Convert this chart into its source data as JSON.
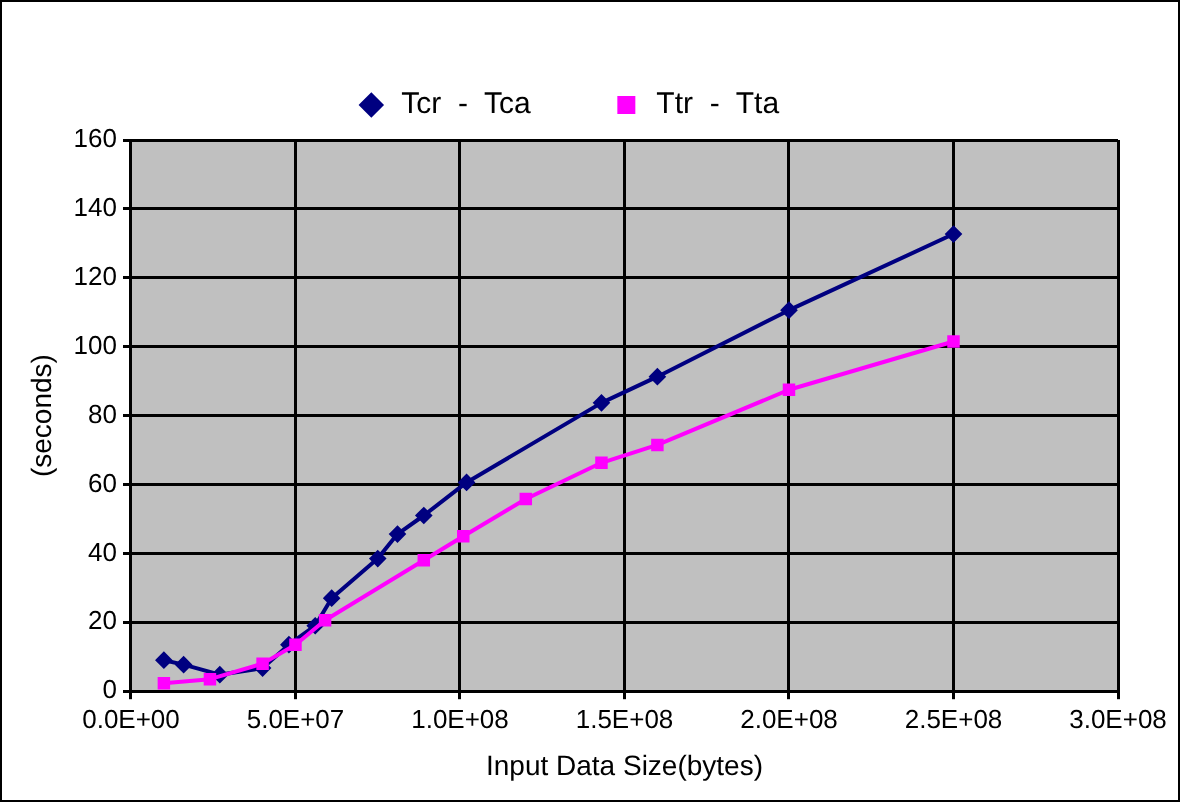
{
  "chart_data": {
    "type": "line",
    "xlabel": "Input Data Size(bytes)",
    "ylabel": "(seconds)",
    "xlim": [
      0,
      300000000
    ],
    "xticks": [
      {
        "value": 0,
        "label": "0.0E+00"
      },
      {
        "value": 50000000,
        "label": "5.0E+07"
      },
      {
        "value": 100000000,
        "label": "1.0E+08"
      },
      {
        "value": 150000000,
        "label": "1.5E+08"
      },
      {
        "value": 200000000,
        "label": "2.0E+08"
      },
      {
        "value": 250000000,
        "label": "2.5E+08"
      },
      {
        "value": 300000000,
        "label": "3.0E+08"
      }
    ],
    "ylim": [
      0,
      160
    ],
    "yticks": [
      0,
      20,
      40,
      60,
      80,
      100,
      120,
      140,
      160
    ],
    "grid": true,
    "legend": "top",
    "series": [
      {
        "name": "Tcr  -  Tca",
        "color": "#000080",
        "marker": "diamond",
        "x": [
          10000000,
          16000000,
          27000000,
          40000000,
          48000000,
          56000000,
          61000000,
          75000000,
          81000000,
          89000000,
          102000000,
          143000000,
          160000000,
          200000000,
          250000000
        ],
        "values": [
          9,
          7.7,
          4.8,
          6.7,
          13.5,
          19,
          27,
          38.5,
          45.6,
          51,
          60.6,
          83.7,
          91.3,
          110.6,
          132.7
        ]
      },
      {
        "name": "Ttr  -  Tta",
        "color": "#ff00ff",
        "marker": "square",
        "x": [
          10000000,
          24000000,
          40000000,
          50000000,
          59000000,
          89000000,
          101000000,
          120000000,
          143000000,
          160000000,
          200000000,
          250000000
        ],
        "values": [
          2.3,
          3.5,
          8,
          13.5,
          20.6,
          38,
          45,
          55.8,
          66.3,
          71.5,
          87.5,
          101.5
        ]
      }
    ]
  }
}
